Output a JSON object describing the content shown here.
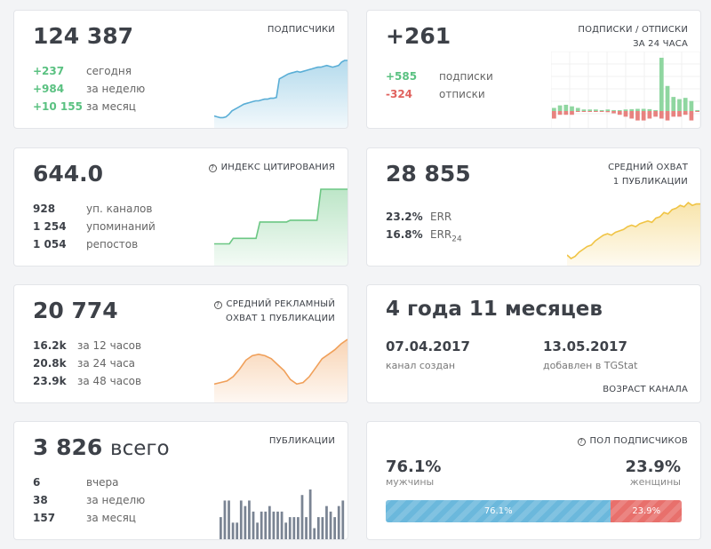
{
  "subscribers": {
    "value": "124 387",
    "title": "ПОДПИСЧИКИ",
    "rows": [
      {
        "v": "+237",
        "t": "сегодня"
      },
      {
        "v": "+984",
        "t": "за неделю"
      },
      {
        "v": "+10 155",
        "t": "за месяц"
      }
    ],
    "color": "#5aaed6",
    "trend": [
      10,
      9,
      8,
      8,
      9,
      12,
      16,
      18,
      20,
      22,
      24,
      25,
      26,
      27,
      28,
      28,
      29,
      30,
      30,
      31,
      31,
      32,
      54,
      56,
      58,
      60,
      61,
      62,
      63,
      62,
      63,
      64,
      65,
      66,
      67,
      68,
      68,
      69,
      70,
      69,
      68,
      69,
      70,
      74,
      76,
      76
    ]
  },
  "subs_unsubs": {
    "value": "+261",
    "title": [
      "ПОДПИСКИ / ОТПИСКИ",
      "ЗА 24 ЧАСА"
    ],
    "rows": [
      {
        "v": "+585",
        "t": "подписки"
      },
      {
        "v": "-324",
        "t": "отписки"
      }
    ],
    "colors": {
      "positive": "#8fd6a0",
      "negative": "#e8827f"
    },
    "positive": [
      1,
      1.8,
      2,
      1.5,
      1,
      0.5,
      0.5,
      0.5,
      0.3,
      0.5,
      0.3,
      0,
      0.5,
      0.6,
      0.7,
      0.7,
      0.6,
      0.3,
      17,
      8,
      4.5,
      3.8,
      4.2,
      3.2,
      0.3
    ],
    "negative": [
      -2,
      -1,
      -1,
      -1,
      0,
      0,
      0,
      0,
      0,
      -0.3,
      -0.6,
      -1,
      -1.5,
      -2,
      -2.5,
      -2.5,
      -2,
      -1.5,
      -2,
      -2.5,
      -1.5,
      -1.5,
      -1,
      -2.5,
      0
    ]
  },
  "citation": {
    "value": "644.0",
    "title": "ИНДЕКС ЦИТИРОВАНИЯ",
    "rows": [
      {
        "v": "928",
        "t": "уп. каналов"
      },
      {
        "v": "1 254",
        "t": "упоминаний"
      },
      {
        "v": "1 054",
        "t": "репостов"
      }
    ],
    "color": "#6cc784",
    "trend": [
      20,
      20,
      20,
      20,
      20,
      26,
      26,
      26,
      26,
      26,
      26,
      26,
      44,
      44,
      44,
      44,
      44,
      44,
      44,
      44,
      46,
      46,
      46,
      46,
      46,
      46,
      46,
      46,
      80,
      80,
      80,
      80,
      80,
      80,
      80,
      80
    ]
  },
  "reach": {
    "value": "28 855",
    "title": [
      "СРЕДНИЙ ОХВАТ",
      "1 ПУБЛИКАЦИИ"
    ],
    "rows": [
      {
        "v": "23.2%",
        "t": "ERR"
      },
      {
        "v": "16.8%",
        "t": "ERR",
        "sub": "24"
      }
    ],
    "color": "#f0c445",
    "trend": [
      10,
      5,
      8,
      14,
      18,
      22,
      24,
      30,
      34,
      38,
      40,
      38,
      42,
      44,
      46,
      50,
      52,
      50,
      54,
      56,
      58,
      56,
      62,
      64,
      70,
      68,
      74,
      76,
      80,
      78,
      84,
      80,
      82,
      82
    ]
  },
  "ad_reach": {
    "value": "20 774",
    "title": [
      "СРЕДНИЙ РЕКЛАМНЫЙ",
      "ОХВАТ 1 ПУБЛИКАЦИИ"
    ],
    "rows": [
      {
        "v": "16.2k",
        "t": "за 12 часов"
      },
      {
        "v": "20.8k",
        "t": "за 24 часа"
      },
      {
        "v": "23.9k",
        "t": "за 48 часов"
      }
    ],
    "color": "#f0a05a",
    "trend": [
      20,
      22,
      24,
      30,
      40,
      52,
      58,
      60,
      58,
      54,
      46,
      38,
      26,
      20,
      22,
      30,
      42,
      54,
      60,
      66,
      74,
      80
    ]
  },
  "age": {
    "value": "4 года 11 месяцев",
    "created_date": "07.04.2017",
    "created_label": "канал создан",
    "added_date": "13.05.2017",
    "added_label": "добавлен в TGStat",
    "title": "ВОЗРАСТ КАНАЛА"
  },
  "publications": {
    "value": "3 826",
    "suffix": "всего",
    "title": "ПУБЛИКАЦИИ",
    "rows": [
      {
        "v": "6",
        "t": "вчера"
      },
      {
        "v": "38",
        "t": "за неделю"
      },
      {
        "v": "157",
        "t": "за месяц"
      }
    ],
    "color": "#7a8493",
    "bars": [
      4,
      7,
      7,
      3,
      3,
      7,
      6,
      7,
      5,
      3,
      5,
      5,
      6,
      5,
      5,
      5,
      3,
      4,
      4,
      4,
      8,
      4,
      9,
      2,
      4,
      4,
      6,
      5,
      4,
      6,
      7
    ]
  },
  "gender": {
    "title": "ПОЛ ПОДПИСЧИКОВ",
    "male_pct": "76.1%",
    "male_label": "мужчины",
    "female_pct": "23.9%",
    "female_label": "женщины",
    "male_share": 76.1,
    "colors": {
      "male": "#6bb8dc",
      "female": "#e8706c"
    }
  }
}
